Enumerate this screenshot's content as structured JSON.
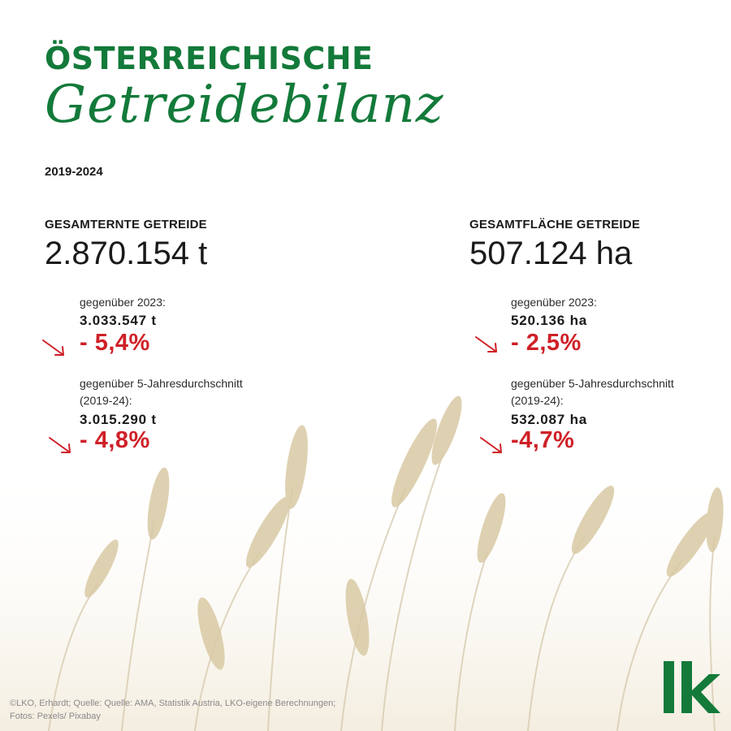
{
  "header": {
    "title_line1": "ÖSTERREICHISCHE",
    "title_line2": "Getreidebilanz",
    "years": "2019-2024"
  },
  "left": {
    "heading": "GESAMTERNTE GETREIDE",
    "total": "2.870.154 t",
    "cmp1": {
      "label": "gegenüber 2023:",
      "value": "3.033.547 t",
      "change": "- 5,4%"
    },
    "cmp2": {
      "label_a": "gegenüber 5-Jahresdurchschnitt",
      "label_b": "(2019-24):",
      "value": "3.015.290 t",
      "change": "- 4,8%"
    }
  },
  "right": {
    "heading": "GESAMTFLÄCHE GETREIDE",
    "total": "507.124 ha",
    "cmp1": {
      "label": "gegenüber 2023:",
      "value": "520.136 ha",
      "change": "- 2,5%"
    },
    "cmp2": {
      "label_a": "gegenüber 5-Jahresdurchschnitt",
      "label_b": "(2019-24):",
      "value": "532.087 ha",
      "change": "-4,7%"
    }
  },
  "footer": {
    "credit_line1": "©LKO, Erhardt; Quelle: Quelle: AMA, Statistik Austria, LKO-eigene Berechnungen;",
    "credit_line2": "Fotos: Pexels/ Pixabay",
    "logo_text": "lk"
  },
  "colors": {
    "brand_green": "#137a3a",
    "decrease_red": "#cf2027",
    "text_dark": "#1a1a1a"
  },
  "icons": {
    "trend": "arrow-down-right-icon",
    "background": "wheat-field-image"
  }
}
